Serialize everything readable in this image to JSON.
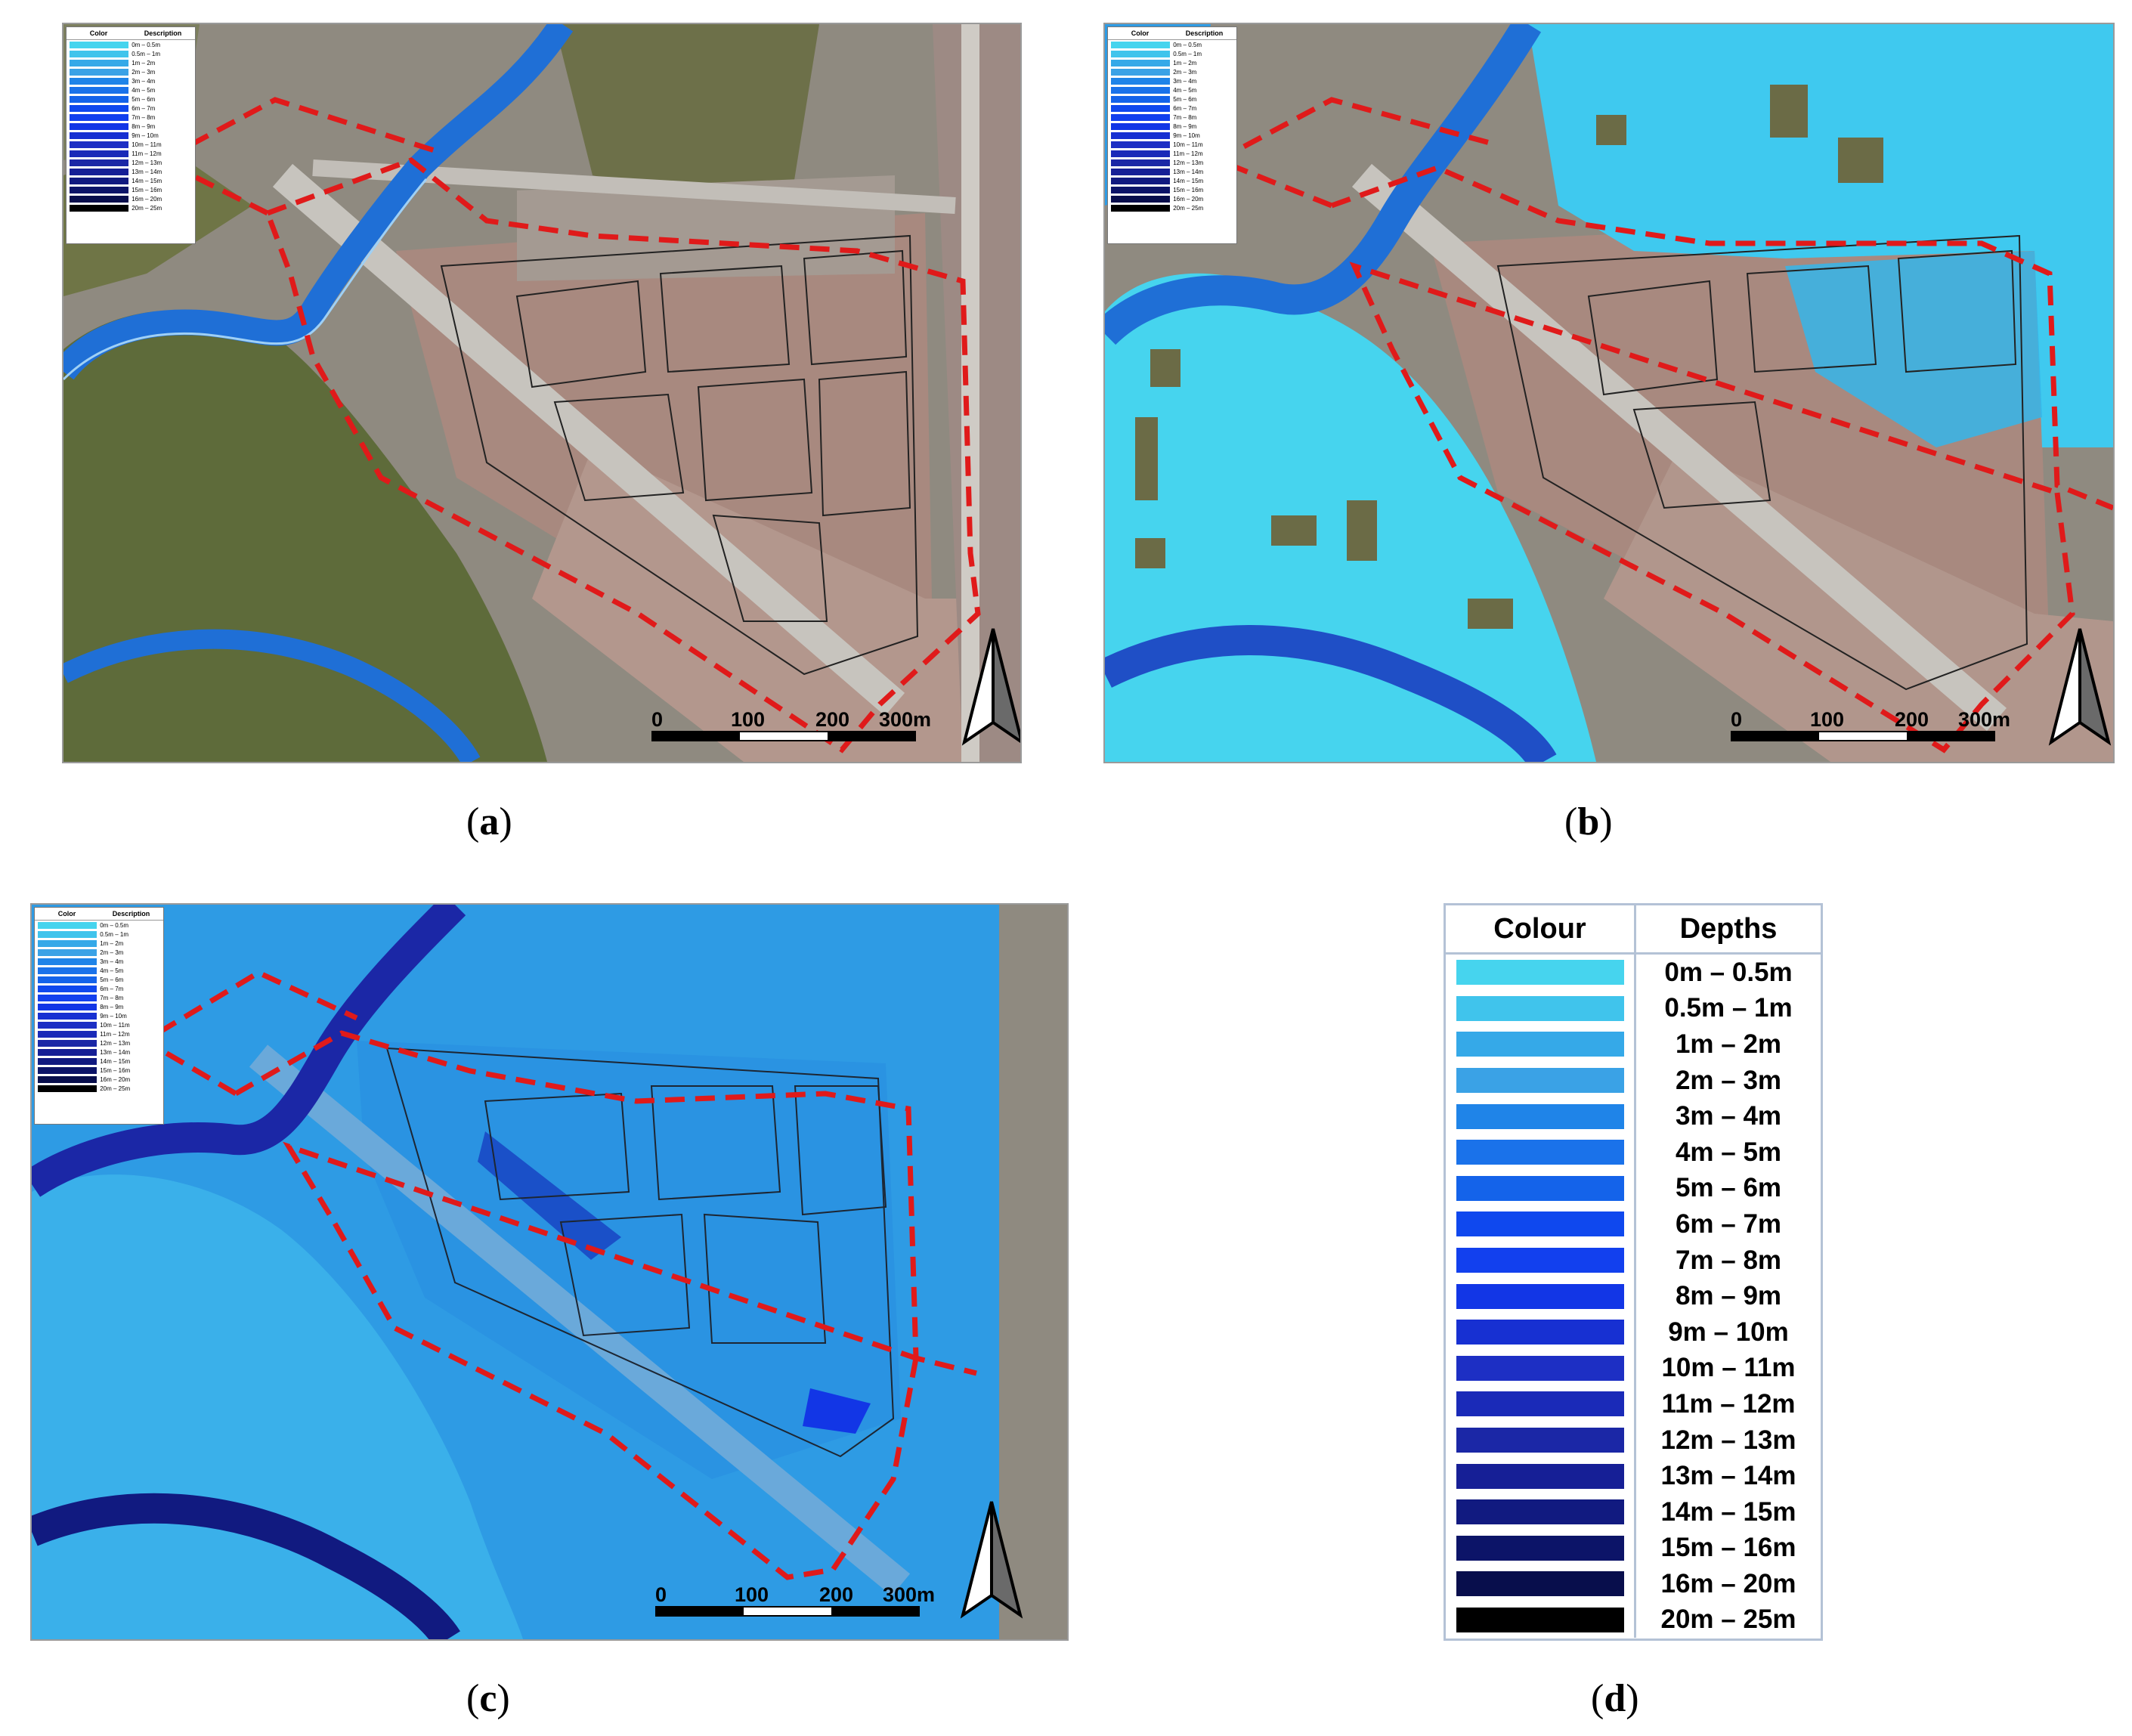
{
  "legend": {
    "colour_header": "Colour",
    "depths_header": "Depths",
    "mini_colour_header": "Color",
    "mini_desc_header": "Description",
    "classes": [
      {
        "label": "0m – 0.5m",
        "color": "#46d4ee"
      },
      {
        "label": "0.5m – 1m",
        "color": "#40c4ec"
      },
      {
        "label": "1m – 2m",
        "color": "#35a9e8"
      },
      {
        "label": "2m – 3m",
        "color": "#3aa2e6"
      },
      {
        "label": "3m – 4m",
        "color": "#1f84e8"
      },
      {
        "label": "4m – 5m",
        "color": "#1a72ea"
      },
      {
        "label": "5m – 6m",
        "color": "#1463ea"
      },
      {
        "label": "6m – 7m",
        "color": "#0f48ee"
      },
      {
        "label": "7m – 8m",
        "color": "#1240ee"
      },
      {
        "label": "8m – 9m",
        "color": "#1236e6"
      },
      {
        "label": "9m – 10m",
        "color": "#1730d2"
      },
      {
        "label": "10m – 11m",
        "color": "#1d2fc4"
      },
      {
        "label": "11m – 12m",
        "color": "#1a2ab8"
      },
      {
        "label": "12m – 13m",
        "color": "#1b27a6"
      },
      {
        "label": "13m – 14m",
        "color": "#161f96"
      },
      {
        "label": "14m – 15m",
        "color": "#111a80"
      },
      {
        "label": "15m – 16m",
        "color": "#0c1468"
      },
      {
        "label": "16m – 20m",
        "color": "#080e4c"
      },
      {
        "label": "20m – 25m",
        "color": "#000000"
      }
    ]
  },
  "scale": {
    "ticks": [
      "0",
      "100",
      "200",
      "300m"
    ]
  },
  "panels": [
    {
      "id": "a",
      "letter": "a",
      "flood": "none"
    },
    {
      "id": "b",
      "letter": "b",
      "flood": "partial"
    },
    {
      "id": "c",
      "letter": "c",
      "flood": "full"
    }
  ],
  "colors": {
    "aerial_base": "#8f8a80",
    "vegetation": "#5e6b3a",
    "urban": "#a8897f",
    "river": "#1f6fd6",
    "boundary": "#e01a1a",
    "flood_light": "#3fc9ef",
    "flood_mid": "#2e9be4"
  }
}
